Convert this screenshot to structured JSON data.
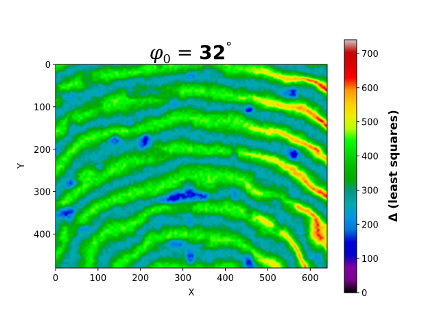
{
  "chart_data": {
    "type": "heatmap",
    "title": {
      "symbol": "φ",
      "subscript": "0",
      "equals": " = ",
      "value": "32",
      "unit": "°"
    },
    "xlabel": "X",
    "ylabel": "Y",
    "xlim": [
      0,
      640
    ],
    "ylim": [
      480,
      0
    ],
    "y_inverted": true,
    "xticks": [
      0,
      100,
      200,
      300,
      400,
      500,
      600
    ],
    "yticks": [
      0,
      100,
      200,
      300,
      400
    ],
    "colorbar": {
      "label": "Δ (least squares)",
      "range": [
        0,
        740
      ],
      "ticks": [
        0,
        100,
        200,
        300,
        400,
        500,
        600,
        700
      ],
      "colormap": "nipy_spectral",
      "stops": [
        {
          "value": 0.0,
          "color": "#000000"
        },
        {
          "value": 0.05,
          "color": "#7a008a"
        },
        {
          "value": 0.1,
          "color": "#8000a0"
        },
        {
          "value": 0.15,
          "color": "#0000d0"
        },
        {
          "value": 0.2,
          "color": "#0000dd"
        },
        {
          "value": 0.25,
          "color": "#0077dd"
        },
        {
          "value": 0.3,
          "color": "#0099dd"
        },
        {
          "value": 0.35,
          "color": "#00aaaa"
        },
        {
          "value": 0.4,
          "color": "#009988"
        },
        {
          "value": 0.45,
          "color": "#00aa00"
        },
        {
          "value": 0.5,
          "color": "#00bb00"
        },
        {
          "value": 0.55,
          "color": "#00dd00"
        },
        {
          "value": 0.6,
          "color": "#00ff00"
        },
        {
          "value": 0.65,
          "color": "#bbff00"
        },
        {
          "value": 0.7,
          "color": "#eeee00"
        },
        {
          "value": 0.75,
          "color": "#ffcc00"
        },
        {
          "value": 0.8,
          "color": "#ff9900"
        },
        {
          "value": 0.85,
          "color": "#ff0000"
        },
        {
          "value": 0.9,
          "color": "#dd0000"
        },
        {
          "value": 0.95,
          "color": "#cc0000"
        },
        {
          "value": 1.0,
          "color": "#cccccc"
        }
      ]
    }
  }
}
